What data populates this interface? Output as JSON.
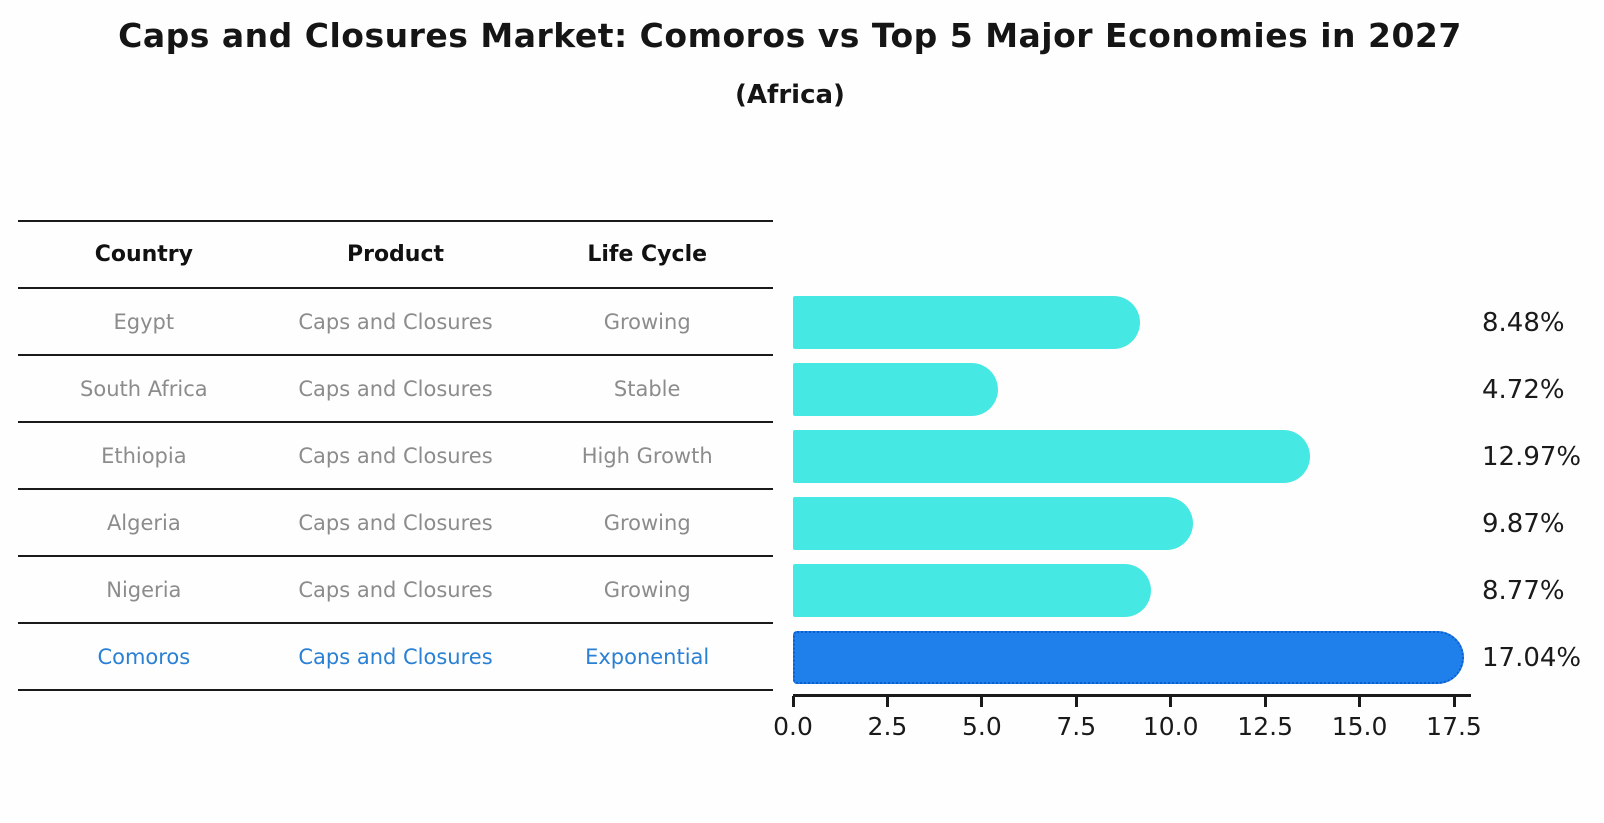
{
  "title": "Caps and Closures Market: Comoros vs Top 5 Major Economies in 2027",
  "subtitle": "(Africa)",
  "table": {
    "headers": {
      "country": "Country",
      "product": "Product",
      "life_cycle": "Life Cycle"
    },
    "rows": [
      {
        "country": "Egypt",
        "product": "Caps and Closures",
        "life_cycle": "Growing",
        "value_label": "8.48%"
      },
      {
        "country": "South Africa",
        "product": "Caps and Closures",
        "life_cycle": "Stable",
        "value_label": "4.72%"
      },
      {
        "country": "Ethiopia",
        "product": "Caps and Closures",
        "life_cycle": "High Growth",
        "value_label": "12.97%"
      },
      {
        "country": "Algeria",
        "product": "Caps and Closures",
        "life_cycle": "Growing",
        "value_label": "9.87%"
      },
      {
        "country": "Nigeria",
        "product": "Caps and Closures",
        "life_cycle": "Growing",
        "value_label": "8.77%"
      },
      {
        "country": "Comoros",
        "product": "Caps and Closures",
        "life_cycle": "Exponential",
        "value_label": "17.04%"
      }
    ]
  },
  "chart_data": {
    "type": "bar",
    "orientation": "horizontal",
    "title": "Caps and Closures Market: Comoros vs Top 5 Major Economies in 2027 (Africa)",
    "categories": [
      "Egypt",
      "South Africa",
      "Ethiopia",
      "Algeria",
      "Nigeria",
      "Comoros"
    ],
    "values": [
      8.48,
      4.72,
      12.97,
      9.87,
      8.77,
      17.04
    ],
    "value_labels": [
      "8.48%",
      "4.72%",
      "12.97%",
      "9.87%",
      "8.77%",
      "17.04%"
    ],
    "xlabel": "",
    "ylabel": "",
    "xlim": [
      0,
      17.5
    ],
    "x_ticks": [
      "0.0",
      "2.5",
      "5.0",
      "7.5",
      "10.0",
      "12.5",
      "15.0",
      "17.5"
    ],
    "grid": false,
    "legend_position": "none",
    "highlight_index": 5
  },
  "colors": {
    "bar": "#45e8e2",
    "highlight_bar": "#1f80ec",
    "highlight_edge": "#0d5ecd",
    "highlight_text": "#2a80d4",
    "table_text": "#8c8c8c",
    "header_text": "#111111",
    "axis": "#1a1a1a"
  }
}
